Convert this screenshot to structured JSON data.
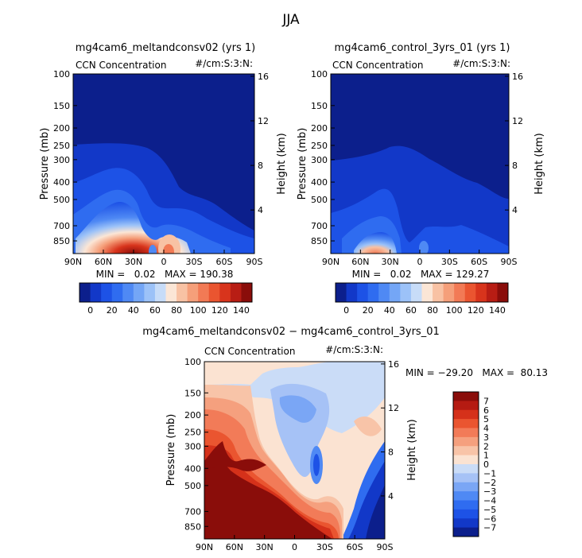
{
  "figure_title": "JJA",
  "colors": {
    "blue_scale": [
      "#0c1f8c",
      "#1238c8",
      "#1d52e6",
      "#2f6cf0",
      "#4f89f4",
      "#74a6f6",
      "#9cc2f8",
      "#c7dcf8",
      "#fbe6d6",
      "#f8c2a4",
      "#f59f7a",
      "#f27a55",
      "#ea5530",
      "#d8341c",
      "#b81d14",
      "#8a0d0a"
    ],
    "diff_scale": [
      "#0c1f8c",
      "#1238c8",
      "#1d52e6",
      "#2f6cf0",
      "#4f89f4",
      "#7aa6f5",
      "#a6c2f6",
      "#cadcf7",
      "#fbe3d2",
      "#f8c4a8",
      "#f5a07e",
      "#f27b58",
      "#ea5530",
      "#d5311a",
      "#b51b12",
      "#8a0d0a"
    ]
  },
  "chart_data": [
    {
      "type": "heatmap",
      "id": "panel_a",
      "title": "mg4cam6_meltandconsv02 (yrs 1)",
      "subtitle_left": "CCN Concentration",
      "subtitle_right": "#/cm:S:3:N:",
      "xlabel": "",
      "ylabel": "Pressure (mb)",
      "ylabel_right": "Height (km)",
      "x_ticks": [
        "90N",
        "60N",
        "30N",
        "0",
        "30S",
        "60S",
        "90S"
      ],
      "y_ticks": [
        "100",
        "150",
        "200",
        "250",
        "300",
        "400",
        "500",
        "700",
        "850"
      ],
      "y_right_ticks": [
        "16",
        "12",
        "8",
        "4"
      ],
      "stats": "MIN =   0.02   MAX = 190.38",
      "stats_min": 0.02,
      "stats_max": 190.38,
      "colorbar_labels": [
        "0",
        "20",
        "40",
        "60",
        "80",
        "100",
        "120",
        "140"
      ],
      "ylim": [
        100,
        1000
      ]
    },
    {
      "type": "heatmap",
      "id": "panel_b",
      "title": "mg4cam6_control_3yrs_01 (yrs 1)",
      "subtitle_left": "CCN Concentration",
      "subtitle_right": "#/cm:S:3:N:",
      "xlabel": "",
      "ylabel": "Pressure (mb)",
      "ylabel_right": "Height (km)",
      "x_ticks": [
        "90N",
        "60N",
        "30N",
        "0",
        "30S",
        "60S",
        "90S"
      ],
      "y_ticks": [
        "100",
        "150",
        "200",
        "250",
        "300",
        "400",
        "500",
        "700",
        "850"
      ],
      "y_right_ticks": [
        "16",
        "12",
        "8",
        "4"
      ],
      "stats": "MIN =   0.02   MAX = 129.27",
      "stats_min": 0.02,
      "stats_max": 129.27,
      "colorbar_labels": [
        "0",
        "20",
        "40",
        "60",
        "80",
        "100",
        "120",
        "140"
      ],
      "ylim": [
        100,
        1000
      ]
    },
    {
      "type": "heatmap",
      "id": "panel_c",
      "title": "mg4cam6_meltandconsv02 − mg4cam6_control_3yrs_01",
      "subtitle_left": "CCN Concentration",
      "subtitle_right": "#/cm:S:3:N:",
      "xlabel": "",
      "ylabel": "Pressure (mb)",
      "ylabel_right": "Height (km)",
      "x_ticks": [
        "90N",
        "60N",
        "30N",
        "0",
        "30S",
        "60S",
        "90S"
      ],
      "y_ticks": [
        "100",
        "150",
        "200",
        "250",
        "300",
        "400",
        "500",
        "700",
        "850"
      ],
      "y_right_ticks": [
        "16",
        "12",
        "8",
        "4"
      ],
      "stats": "MIN = −29.20   MAX =  80.13",
      "stats_min": -29.2,
      "stats_max": 80.13,
      "colorbar_labels": [
        "7",
        "6",
        "5",
        "4",
        "3",
        "2",
        "1",
        "0",
        "−1",
        "−2",
        "−3",
        "−4",
        "−5",
        "−6",
        "−7"
      ],
      "ylim": [
        100,
        1000
      ]
    }
  ]
}
